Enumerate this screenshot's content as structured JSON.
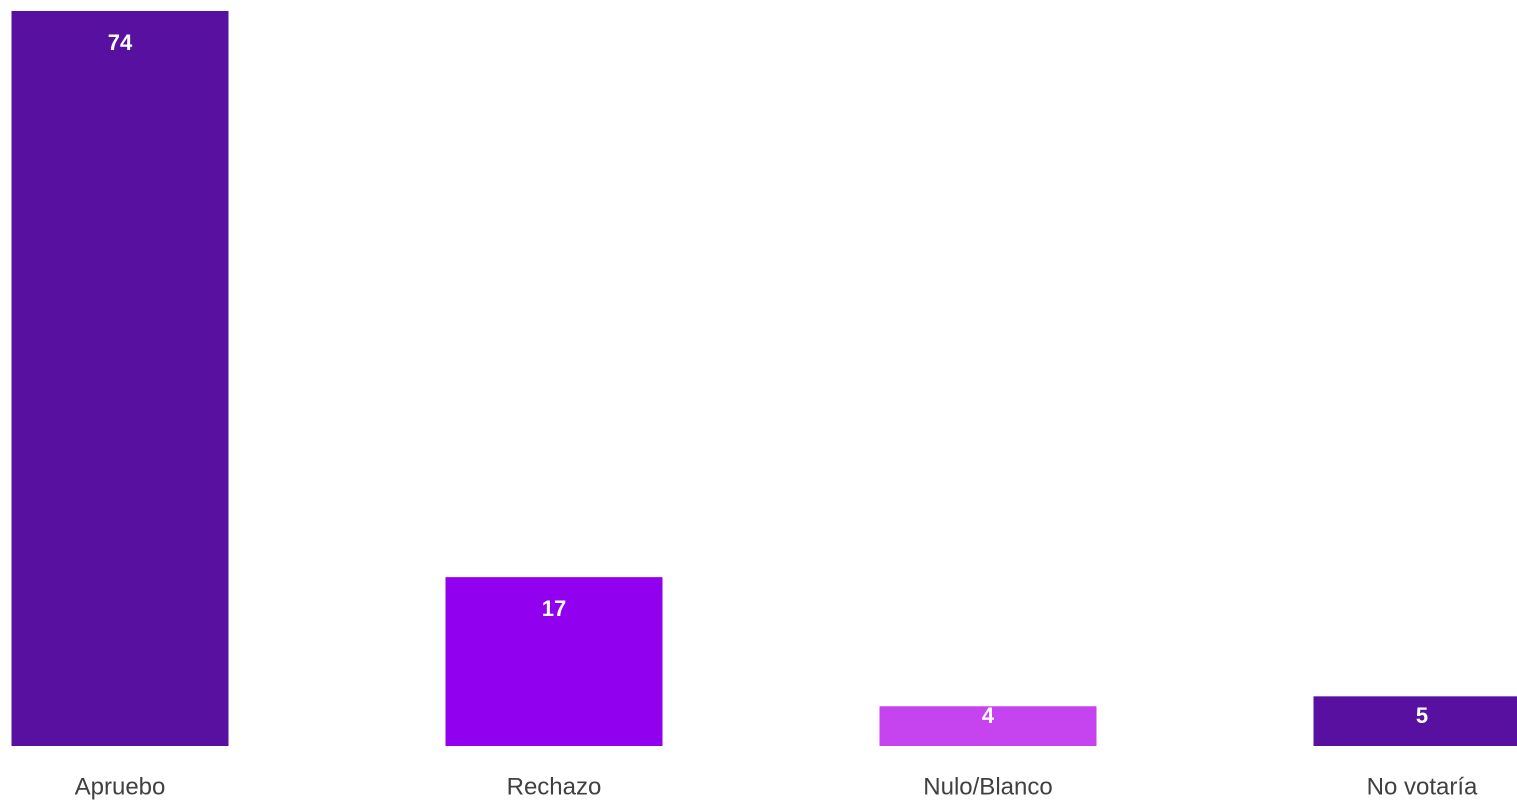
{
  "chart_data": {
    "type": "bar",
    "categories": [
      "Apruebo",
      "Rechazo",
      "Nulo/Blanco",
      "No votaría"
    ],
    "values": [
      74,
      17,
      4,
      5
    ],
    "colors": [
      "#57109f",
      "#9100ef",
      "#c643f0",
      "#57109f"
    ]
  }
}
